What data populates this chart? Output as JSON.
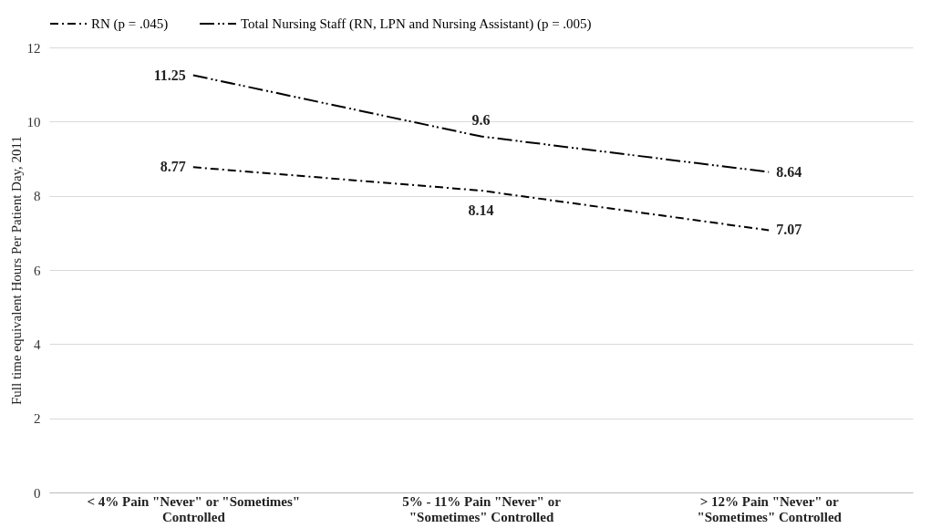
{
  "chart_data": {
    "type": "line",
    "ylabel": "Full time equivalent Hours Per Patient Day, 2011",
    "categories": [
      "< 4% Pain \"Never\" or \"Sometimes\" Controlled",
      "5% - 11% Pain \"Never\" or \"Sometimes\" Controlled",
      "> 12% Pain \"Never\" or \"Sometimes\" Controlled"
    ],
    "series": [
      {
        "name": "RN (p = .045)",
        "color": "#000000",
        "line_style": "dashed",
        "values": [
          8.77,
          8.14,
          7.07
        ]
      },
      {
        "name": "Total Nursing Staff (RN, LPN and Nursing Assistant) (p = .005)",
        "color": "#000000",
        "line_style": "dashed",
        "values": [
          11.25,
          9.6,
          8.64
        ]
      }
    ],
    "ylim": [
      0,
      12
    ],
    "yticks": [
      0,
      2,
      4,
      6,
      8,
      10,
      12
    ],
    "grid": "y",
    "legend": "top",
    "data_labels": true,
    "marker": "none"
  }
}
